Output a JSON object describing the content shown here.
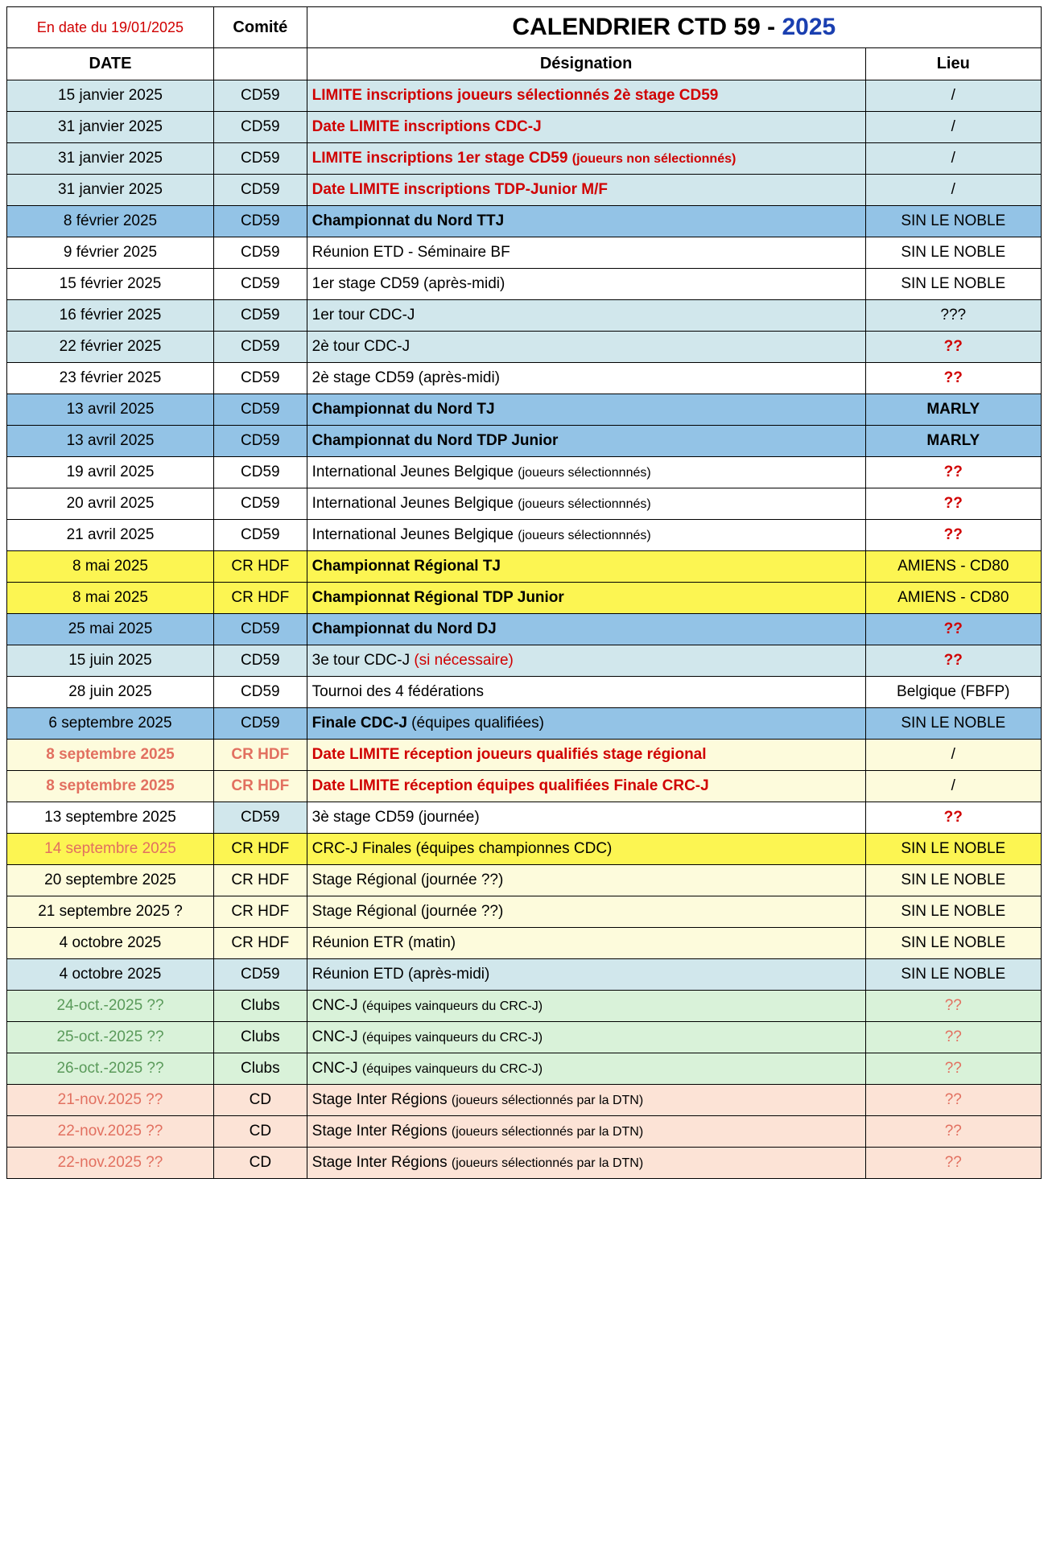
{
  "header": {
    "date_label": "En date du 19/01/2025",
    "comite_label": "Comité",
    "title_prefix": "CALENDRIER CTD 59 - ",
    "title_year": "2025"
  },
  "columns": {
    "date": "DATE",
    "designation": "Désignation",
    "lieu": "Lieu"
  },
  "colors": {
    "lightblue": "#d1e7ec",
    "medblue": "#93c3e6",
    "white": "#ffffff",
    "yellow": "#fcf552",
    "lightyellow": "#fdfbdc",
    "lightgreen": "#d9f2d9",
    "peach": "#fce3d6"
  },
  "rows": [
    {
      "date": "15 janvier 2025",
      "comite": "CD59",
      "desig": "LIMITE inscriptions joueurs sélectionnés 2è stage CD59",
      "lieu": "/",
      "bg": "lightblue",
      "desig_bold": true,
      "desig_color": "red"
    },
    {
      "date": "31 janvier 2025",
      "comite": "CD59",
      "desig": "Date LIMITE inscriptions CDC-J",
      "lieu": "/",
      "bg": "lightblue",
      "desig_bold": true,
      "desig_color": "red"
    },
    {
      "date": "31 janvier 2025",
      "comite": "CD59",
      "desig": "LIMITE inscriptions 1er stage CD59 ",
      "desig_small": "(joueurs non sélectionnés)",
      "lieu": "/",
      "bg": "lightblue",
      "desig_bold": true,
      "desig_color": "red"
    },
    {
      "date": "31 janvier 2025",
      "comite": "CD59",
      "desig": "Date LIMITE inscriptions TDP-Junior M/F",
      "lieu": "/",
      "bg": "lightblue",
      "desig_bold": true,
      "desig_color": "red"
    },
    {
      "date": "8 février 2025",
      "comite": "CD59",
      "desig": "Championnat du  Nord TTJ",
      "lieu": "SIN LE NOBLE",
      "bg": "medblue",
      "desig_bold": true
    },
    {
      "date": "9 février 2025",
      "comite": "CD59",
      "desig": "Réunion ETD - Séminaire BF",
      "lieu": "SIN LE NOBLE",
      "bg": "white"
    },
    {
      "date": "15 février 2025",
      "comite": "CD59",
      "desig": "1er stage CD59 (après-midi)",
      "lieu": "SIN LE NOBLE",
      "bg": "white"
    },
    {
      "date": "16 février 2025",
      "comite": "CD59",
      "desig": "1er tour CDC-J",
      "lieu": "???",
      "bg": "lightblue"
    },
    {
      "date": "22 février 2025",
      "comite": "CD59",
      "desig": "2è tour CDC-J",
      "lieu": "??",
      "bg": "lightblue",
      "lieu_color": "red",
      "lieu_bold": true
    },
    {
      "date": "23 février 2025",
      "comite": "CD59",
      "desig": "2è stage CD59 (après-midi)",
      "lieu": "??",
      "bg": "white",
      "lieu_color": "red",
      "lieu_bold": true
    },
    {
      "date": "13 avril 2025",
      "comite": "CD59",
      "desig": "Championnat du Nord  TJ",
      "lieu": "MARLY",
      "bg": "medblue",
      "desig_bold": true,
      "lieu_bold": true
    },
    {
      "date": "13 avril 2025",
      "comite": "CD59",
      "desig": "Championnat du  Nord  TDP Junior",
      "lieu": "MARLY",
      "bg": "medblue",
      "desig_bold": true,
      "lieu_bold": true
    },
    {
      "date": "19 avril 2025",
      "comite": "CD59",
      "desig": "International Jeunes Belgique ",
      "desig_small": "(joueurs sélectionnnés)",
      "lieu": "??",
      "bg": "white",
      "lieu_color": "red",
      "lieu_bold": true
    },
    {
      "date": "20 avril 2025",
      "comite": "CD59",
      "desig": "International Jeunes Belgique ",
      "desig_small": "(joueurs sélectionnnés)",
      "lieu": "??",
      "bg": "white",
      "lieu_color": "red",
      "lieu_bold": true
    },
    {
      "date": "21 avril 2025",
      "comite": "CD59",
      "desig": "International Jeunes Belgique ",
      "desig_small": "(joueurs sélectionnnés)",
      "lieu": "??",
      "bg": "white",
      "lieu_color": "red",
      "lieu_bold": true
    },
    {
      "date": "8 mai 2025",
      "comite": "CR HDF",
      "desig": "Championnat Régional TJ",
      "lieu": "AMIENS - CD80",
      "bg": "yellow",
      "desig_bold": true
    },
    {
      "date": "8 mai 2025",
      "comite": "CR HDF",
      "desig": "Championnat Régional TDP Junior",
      "lieu": "AMIENS - CD80",
      "bg": "yellow",
      "desig_bold": true
    },
    {
      "date": "25 mai 2025",
      "comite": "CD59",
      "desig": "Championnat du  Nord DJ",
      "lieu": "??",
      "bg": "medblue",
      "desig_bold": true,
      "lieu_color": "red",
      "lieu_bold": true
    },
    {
      "date": "15 juin 2025",
      "comite": "CD59",
      "desig": "3e tour CDC-J ",
      "desig_extra": "(si nécessaire)",
      "desig_extra_color": "red",
      "lieu": "??",
      "bg": "lightblue",
      "lieu_color": "red",
      "lieu_bold": true
    },
    {
      "date": "28 juin 2025",
      "comite": "CD59",
      "desig": "Tournoi des 4 fédérations",
      "lieu": "Belgique (FBFP)",
      "bg": "white"
    },
    {
      "date": "6 septembre 2025",
      "comite": "CD59",
      "desig": "Finale CDC-J ",
      "desig_extra": "(équipes qualifiées)",
      "lieu": "SIN LE NOBLE",
      "bg": "medblue",
      "desig_bold": true,
      "desig_extra_weight": "normal"
    },
    {
      "date": "8 septembre 2025",
      "date_color": "salmon",
      "date_bold": true,
      "comite": "CR HDF",
      "comite_color": "salmon",
      "comite_bold": true,
      "desig": "  Date LIMITE réception joueurs qualifiés stage régional",
      "lieu": "/",
      "bg": "lightyellow",
      "desig_bold": true,
      "desig_color": "red"
    },
    {
      "date": "8 septembre 2025",
      "date_color": "salmon",
      "date_bold": true,
      "comite": "CR HDF",
      "comite_color": "salmon",
      "comite_bold": true,
      "desig": "  Date LIMITE réception équipes qualifiées Finale CRC-J",
      "lieu": "/",
      "bg": "lightyellow",
      "desig_bold": true,
      "desig_color": "red"
    },
    {
      "date": "13 septembre 2025",
      "comite": "CD59",
      "comite_bg": "lightblue",
      "desig": "3è stage CD59 (journée)",
      "lieu": "??",
      "bg": "white",
      "lieu_color": "red",
      "lieu_bold": true
    },
    {
      "date": "14 septembre 2025",
      "date_color": "salmon",
      "comite": "CR HDF",
      "desig": "CRC-J Finales (équipes championnes CDC)",
      "lieu": "SIN LE NOBLE",
      "bg": "yellow"
    },
    {
      "date": "20 septembre 2025",
      "comite": "CR HDF",
      "desig": "Stage Régional (journée ??)",
      "lieu": "SIN LE NOBLE",
      "bg": "lightyellow"
    },
    {
      "date": "21 septembre 2025 ?",
      "comite": "CR HDF",
      "desig": "Stage Régional (journée ??)",
      "lieu": "SIN LE NOBLE",
      "bg": "lightyellow"
    },
    {
      "date": "4 octobre 2025",
      "comite": "CR HDF",
      "desig": "Réunion ETR (matin)",
      "lieu": "SIN LE NOBLE",
      "bg": "lightyellow"
    },
    {
      "date": "4 octobre 2025",
      "comite": "CD59",
      "desig": "Réunion ETD (après-midi)",
      "lieu": "SIN LE NOBLE",
      "bg": "lightblue"
    },
    {
      "date": "24-oct.-2025 ??",
      "date_color": "green",
      "comite": "Clubs",
      "desig": "CNC-J ",
      "desig_small": "(équipes vainqueurs du CRC-J)",
      "lieu": "??",
      "bg": "lightgreen",
      "lieu_color": "salmon"
    },
    {
      "date": "25-oct.-2025 ??",
      "date_color": "green",
      "comite": "Clubs",
      "desig": "CNC-J ",
      "desig_small": "(équipes vainqueurs du CRC-J)",
      "lieu": "??",
      "bg": "lightgreen",
      "lieu_color": "salmon"
    },
    {
      "date": "26-oct.-2025 ??",
      "date_color": "green",
      "comite": "Clubs",
      "desig": "CNC-J ",
      "desig_small": "(équipes vainqueurs du CRC-J)",
      "lieu": "??",
      "bg": "lightgreen",
      "lieu_color": "salmon"
    },
    {
      "date": "21-nov.2025 ??",
      "date_color": "salmon",
      "comite": "CD",
      "desig": "Stage Inter Régions ",
      "desig_small": "(joueurs sélectionnés par la DTN)",
      "lieu": "??",
      "bg": "peach",
      "lieu_color": "salmon"
    },
    {
      "date": "22-nov.2025 ??",
      "date_color": "salmon",
      "comite": "CD",
      "desig": "Stage Inter Régions ",
      "desig_small": "(joueurs sélectionnés par la DTN)",
      "lieu": "??",
      "bg": "peach",
      "lieu_color": "salmon"
    },
    {
      "date": "22-nov.2025 ??",
      "date_color": "salmon",
      "comite": "CD",
      "desig": "Stage Inter Régions ",
      "desig_small": "(joueurs sélectionnés par la DTN)",
      "lieu": "??",
      "bg": "peach",
      "lieu_color": "salmon"
    }
  ]
}
